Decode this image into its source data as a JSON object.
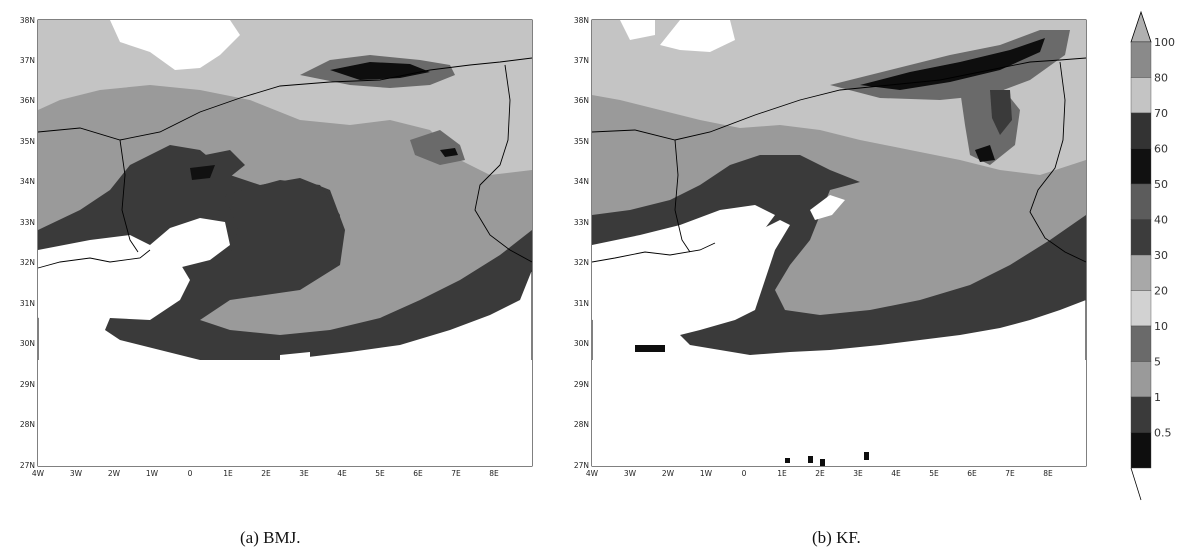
{
  "panel_a": {
    "caption": "(a) BMJ.",
    "lat_labels": [
      "38N",
      "37N",
      "36N",
      "35N",
      "34N",
      "33N",
      "32N",
      "31N",
      "30N",
      "29N",
      "28N",
      "27N"
    ],
    "lon_labels": [
      "4W",
      "3W",
      "2W",
      "1W",
      "0",
      "1E",
      "2E",
      "3E",
      "4E",
      "5E",
      "6E",
      "7E",
      "8E"
    ]
  },
  "panel_b": {
    "caption": "(b) KF.",
    "lat_labels": [
      "38N",
      "37N",
      "36N",
      "35N",
      "34N",
      "33N",
      "32N",
      "31N",
      "30N",
      "29N",
      "28N",
      "27N"
    ],
    "lon_labels": [
      "4W",
      "3W",
      "2W",
      "1W",
      "0",
      "1E",
      "2E",
      "3E",
      "4E",
      "5E",
      "6E",
      "7E",
      "8E"
    ]
  },
  "colorbar": {
    "levels": [
      "100",
      "80",
      "70",
      "60",
      "50",
      "40",
      "30",
      "20",
      "10",
      "5",
      "1",
      "0.5"
    ],
    "colors": [
      "#8a8a8a",
      "#c4c4c4",
      "#333333",
      "#111111",
      "#5c5c5c",
      "#3c3c3c",
      "#a8a8a8",
      "#d2d2d2",
      "#6a6a6a",
      "#9a9a9a",
      "#3a3a3a",
      "#0e0e0e"
    ]
  },
  "map_colors": {
    "light": "#c4c4c4",
    "mid": "#9a9a9a",
    "darkmid": "#6a6a6a",
    "dark": "#3a3a3a",
    "black": "#0e0e0e",
    "land_background": "#ffffff",
    "border": "#000000"
  }
}
